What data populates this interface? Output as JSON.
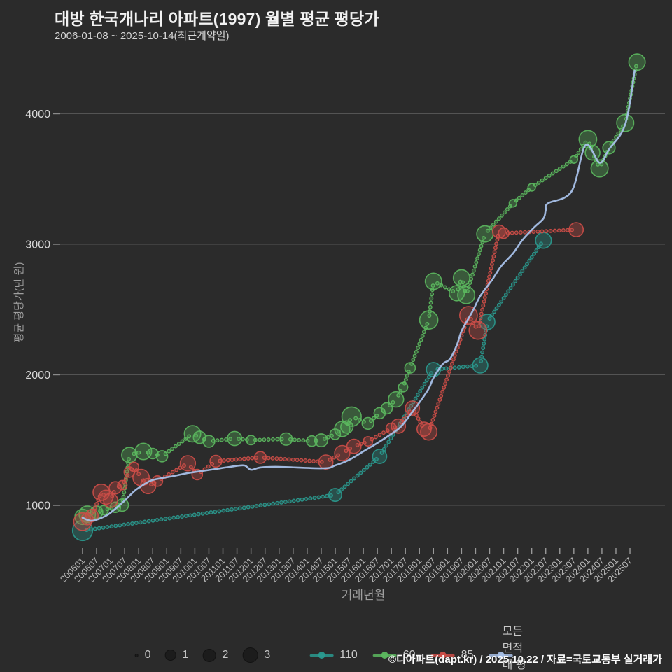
{
  "chart_data": {
    "type": "scatter",
    "title": "대방 한국개나리 아파트(1997) 월별 평균 평당가",
    "subtitle": "2006-01-08 ~ 2025-10-14(최근계약일)",
    "xlabel": "거래년월",
    "ylabel": "평균 평당가(만 원)",
    "grid": true,
    "legend_position": "bottom",
    "ylim": [
      600,
      4500
    ],
    "y_ticks": [
      1000,
      2000,
      3000,
      4000
    ],
    "x_ticks": [
      "200601",
      "200607",
      "200701",
      "200707",
      "200801",
      "200807",
      "200901",
      "200907",
      "201001",
      "201007",
      "201101",
      "201107",
      "201201",
      "201207",
      "201301",
      "201307",
      "201401",
      "201407",
      "201501",
      "201507",
      "201601",
      "201607",
      "201701",
      "201707",
      "201801",
      "201807",
      "201901",
      "201907",
      "202001",
      "202007",
      "202101",
      "202107",
      "202201",
      "202207",
      "202301",
      "202307",
      "202401",
      "202407",
      "202501",
      "202507"
    ],
    "size_legend": [
      "0",
      "1",
      "2",
      "3"
    ],
    "series": [
      {
        "name": "110",
        "color": "#2a9a8f",
        "style": "dotted",
        "points": [
          [
            200601,
            807,
            2.8
          ],
          [
            201501,
            1080,
            1.6
          ],
          [
            201608,
            1375,
            1.8
          ],
          [
            201807,
            2040,
            1.8
          ],
          [
            202003,
            2072,
            2.0
          ],
          [
            202006,
            2405,
            2.0
          ],
          [
            202206,
            3030,
            2.1
          ]
        ]
      },
      {
        "name": "60",
        "color": "#5cb85f",
        "style": "dotted",
        "points": [
          [
            200601,
            912,
            2.0
          ],
          [
            200603,
            932,
            2.2
          ],
          [
            200607,
            948,
            1.5
          ],
          [
            200610,
            963,
            1.0
          ],
          [
            200703,
            985,
            1.2
          ],
          [
            200706,
            1002,
            1.5
          ],
          [
            200709,
            1386,
            2.0
          ],
          [
            200803,
            1413,
            2.2
          ],
          [
            200807,
            1397,
            1.2
          ],
          [
            200811,
            1376,
            1.3
          ],
          [
            200912,
            1548,
            2.2
          ],
          [
            201003,
            1521,
            1.5
          ],
          [
            201007,
            1490,
            1.4
          ],
          [
            201106,
            1512,
            1.8
          ],
          [
            201201,
            1500,
            1.0
          ],
          [
            201304,
            1508,
            1.5
          ],
          [
            201403,
            1492,
            1.2
          ],
          [
            201407,
            1498,
            1.6
          ],
          [
            201501,
            1545,
            1.2
          ],
          [
            201504,
            1585,
            2.0
          ],
          [
            201506,
            1600,
            1.5
          ],
          [
            201508,
            1680,
            2.7
          ],
          [
            201603,
            1628,
            1.4
          ],
          [
            201608,
            1706,
            1.3
          ],
          [
            201611,
            1743,
            1.3
          ],
          [
            201703,
            1812,
            2.0
          ],
          [
            201706,
            1905,
            1.0
          ],
          [
            201709,
            2053,
            1.2
          ],
          [
            201805,
            2420,
            2.5
          ],
          [
            201807,
            2716,
            2.2
          ],
          [
            201905,
            2625,
            2.0
          ],
          [
            201907,
            2742,
            2.2
          ],
          [
            201909,
            2610,
            2.3
          ],
          [
            202005,
            3080,
            2.2
          ],
          [
            202105,
            3315,
            0.7
          ],
          [
            202201,
            3437,
            0.7
          ],
          [
            202307,
            3650,
            0.7
          ],
          [
            202401,
            3805,
            2.4
          ],
          [
            202403,
            3702,
            1.9
          ],
          [
            202406,
            3582,
            2.3
          ],
          [
            202410,
            3740,
            1.5
          ],
          [
            202505,
            3930,
            2.3
          ],
          [
            202510,
            4395,
            2.2
          ]
        ]
      },
      {
        "name": "85",
        "color": "#cd4e48",
        "style": "dotted",
        "points": [
          [
            200601,
            875,
            2.4
          ],
          [
            200603,
            896,
            1.4
          ],
          [
            200605,
            922,
            1.5
          ],
          [
            200609,
            1100,
            2.2
          ],
          [
            200611,
            1062,
            1.8
          ],
          [
            200701,
            1038,
            1.8
          ],
          [
            200703,
            1134,
            1.5
          ],
          [
            200706,
            1155,
            1.0
          ],
          [
            200709,
            1255,
            1.2
          ],
          [
            200711,
            1295,
            1.0
          ],
          [
            200802,
            1213,
            2.2
          ],
          [
            200805,
            1148,
            2.0
          ],
          [
            200809,
            1186,
            1.2
          ],
          [
            200910,
            1322,
            2.0
          ],
          [
            201002,
            1236,
            1.2
          ],
          [
            201010,
            1338,
            1.4
          ],
          [
            201205,
            1367,
            1.4
          ],
          [
            201409,
            1332,
            1.8
          ],
          [
            201504,
            1400,
            2.0
          ],
          [
            201509,
            1452,
            1.8
          ],
          [
            201603,
            1490,
            1.0
          ],
          [
            201701,
            1590,
            1.2
          ],
          [
            201704,
            1607,
            1.8
          ],
          [
            201710,
            1745,
            1.8
          ],
          [
            201803,
            1584,
            1.8
          ],
          [
            201805,
            1563,
            2.2
          ],
          [
            201910,
            2455,
            2.4
          ],
          [
            202002,
            2340,
            2.4
          ],
          [
            202011,
            3098,
            1.6
          ],
          [
            202101,
            3085,
            1.2
          ],
          [
            202308,
            3112,
            1.8
          ]
        ]
      },
      {
        "name": "모든 면적대 평균값",
        "color": "#a7c0e8",
        "style": "line",
        "points": [
          [
            200601,
            905
          ],
          [
            200605,
            882
          ],
          [
            200611,
            920
          ],
          [
            200703,
            973
          ],
          [
            200707,
            1037
          ],
          [
            200711,
            1107
          ],
          [
            200801,
            1134
          ],
          [
            200806,
            1188
          ],
          [
            200811,
            1209
          ],
          [
            200904,
            1225
          ],
          [
            200910,
            1247
          ],
          [
            201004,
            1263
          ],
          [
            201010,
            1279
          ],
          [
            201104,
            1295
          ],
          [
            201110,
            1306
          ],
          [
            201201,
            1273
          ],
          [
            201205,
            1290
          ],
          [
            201301,
            1295
          ],
          [
            201408,
            1284
          ],
          [
            201501,
            1306
          ],
          [
            201507,
            1349
          ],
          [
            201601,
            1413
          ],
          [
            201607,
            1477
          ],
          [
            201701,
            1547
          ],
          [
            201705,
            1601
          ],
          [
            201709,
            1692
          ],
          [
            201801,
            1788
          ],
          [
            201805,
            1895
          ],
          [
            201807,
            1976
          ],
          [
            201811,
            2083
          ],
          [
            201902,
            2120
          ],
          [
            201905,
            2228
          ],
          [
            201907,
            2335
          ],
          [
            201910,
            2432
          ],
          [
            201912,
            2496
          ],
          [
            202003,
            2603
          ],
          [
            202008,
            2726
          ],
          [
            202012,
            2834
          ],
          [
            202105,
            2930
          ],
          [
            202109,
            3032
          ],
          [
            202202,
            3129
          ],
          [
            202206,
            3198
          ],
          [
            202207,
            3262
          ],
          [
            202208,
            3315
          ],
          [
            202306,
            3405
          ],
          [
            202312,
            3759
          ],
          [
            202406,
            3625
          ],
          [
            202410,
            3727
          ],
          [
            202505,
            3920
          ],
          [
            202509,
            4330
          ]
        ]
      }
    ]
  },
  "footer": {
    "credit": "©디아파트(dapt.kr) / 2025.10.22 / 자료=국토교통부 실거래가"
  },
  "colors": {
    "background": "#2b2b2b",
    "gridline": "#545454",
    "tick": "#999999",
    "tick_label": "#b8b8b8",
    "y_label": "#d8d8d8",
    "axis_title": "#9f9f9f",
    "series_110": "#2a9a8f",
    "series_60": "#5cb85f",
    "series_85": "#cd4e48",
    "series_avg": "#a7c0e8"
  }
}
